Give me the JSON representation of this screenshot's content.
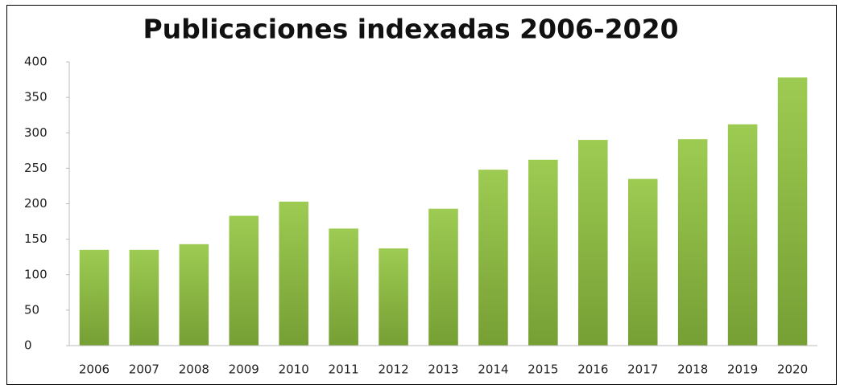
{
  "chart_data": {
    "type": "bar",
    "title": "Publicaciones indexadas 2006-2020",
    "categories": [
      "2006",
      "2007",
      "2008",
      "2009",
      "2010",
      "2011",
      "2012",
      "2013",
      "2014",
      "2015",
      "2016",
      "2017",
      "2018",
      "2019",
      "2020"
    ],
    "values": [
      135,
      135,
      143,
      183,
      203,
      165,
      137,
      193,
      248,
      262,
      290,
      235,
      291,
      312,
      378
    ],
    "color": "#8cb843",
    "ylim": [
      0,
      400
    ],
    "yticks": [
      0,
      50,
      100,
      150,
      200,
      250,
      300,
      350,
      400
    ],
    "grid": false
  }
}
